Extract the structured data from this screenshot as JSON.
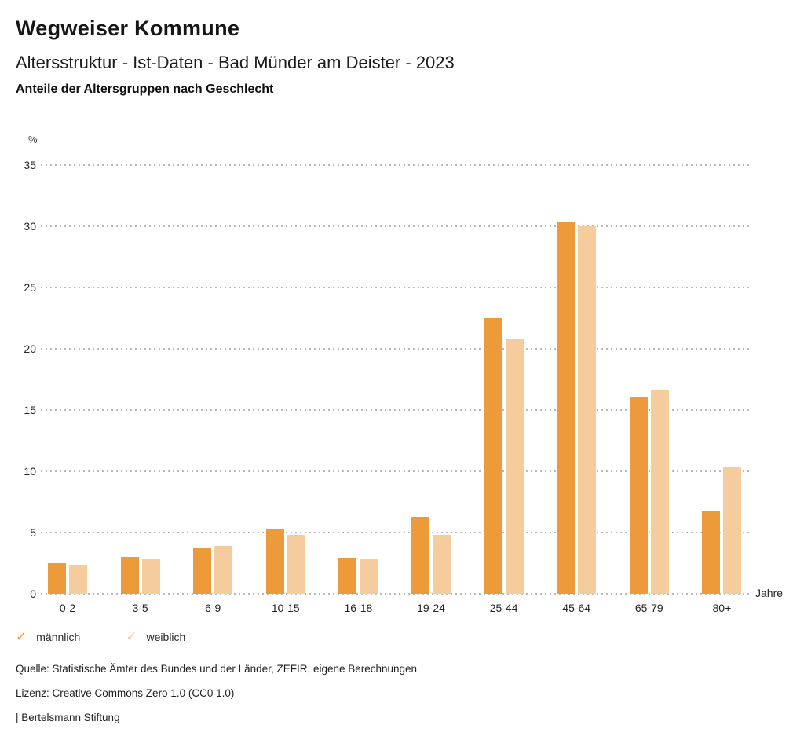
{
  "header": {
    "title": "Wegweiser Kommune",
    "subtitle": "Altersstruktur - Ist-Daten - Bad Münder am Deister - 2023",
    "subsubtitle": "Anteile der Altersgruppen nach Geschlecht"
  },
  "chart_data": {
    "type": "bar",
    "categories": [
      "0-2",
      "3-5",
      "6-9",
      "10-15",
      "16-18",
      "19-24",
      "25-44",
      "45-64",
      "65-79",
      "80+"
    ],
    "series": [
      {
        "name": "männlich",
        "color": "#ED9A3B",
        "values": [
          2.5,
          3.0,
          3.7,
          5.3,
          2.9,
          6.3,
          22.5,
          30.3,
          16.0,
          6.7
        ]
      },
      {
        "name": "weiblich",
        "color": "#F5CC9D",
        "values": [
          2.4,
          2.8,
          3.9,
          4.8,
          2.8,
          4.8,
          20.8,
          30.0,
          16.6,
          10.4
        ]
      }
    ],
    "ylabel": "%",
    "xlabel": "Jahre",
    "ylim": [
      0,
      35
    ],
    "yticks": [
      0,
      5,
      10,
      15,
      20,
      25,
      30,
      35
    ],
    "grid": "horizontal-dotted",
    "legend_position": "bottom-left",
    "gridline_color": "#b9b9b9"
  },
  "legend": {
    "check_icon": "✓"
  },
  "footer": {
    "source": "Quelle: Statistische Ämter des Bundes und der Länder, ZEFIR, eigene Berechnungen",
    "license": "Lizenz: Creative Commons Zero 1.0 (CC0 1.0)",
    "attribution": "| Bertelsmann Stiftung"
  }
}
